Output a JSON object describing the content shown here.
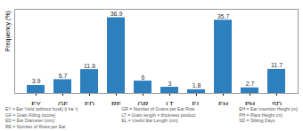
{
  "chart_data": {
    "type": "bar",
    "categories": [
      "EY",
      "GF",
      "ED",
      "RE",
      "GR",
      "LT",
      "EL",
      "EH",
      "PH",
      "SD"
    ],
    "values": [
      3.9,
      6.7,
      11.6,
      36.9,
      6.0,
      3.0,
      1.8,
      35.7,
      2.7,
      11.7
    ],
    "color": "#2e7fbe",
    "ylabel": "Frequency (%)",
    "ylim": [
      0,
      41
    ],
    "data_labels": true,
    "tick_labels": "x",
    "grid": false,
    "annotations": [
      [
        "EY = Ear Yield (without husk) (t ha⁻¹)",
        "GF = Grain Filling (score)",
        "ED = Ear Diameter (mm)",
        "RE = Number of Rows per Ear"
      ],
      [
        "GR = Number of Grains per Ear Row",
        "LT = Grain length × thickness product",
        "EL = Useful Ear Length (cm)"
      ],
      [
        "EH = Ear Insertion Height (m)",
        "PH = Plant Height (m)",
        "SD = Silking Days"
      ]
    ]
  }
}
